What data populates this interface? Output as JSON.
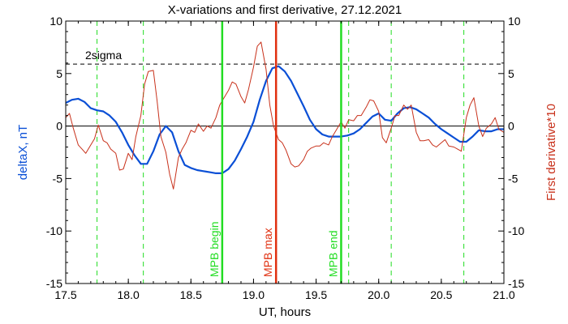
{
  "chart_data": {
    "type": "line",
    "title": "X-variations and first derivative, 27.12.2021",
    "xlabel": "UT, hours",
    "ylabel_left": "deltaX, nT",
    "ylabel_right": "First derivative*10",
    "xlim": [
      17.5,
      21.0
    ],
    "ylim": [
      -15,
      10
    ],
    "x_ticks": [
      "17.5",
      "18.0",
      "18.5",
      "19.0",
      "19.5",
      "20.0",
      "20.5",
      "21.0"
    ],
    "y_ticks_left": [
      "10",
      "5",
      "0",
      "-5",
      "-10",
      "-15"
    ],
    "y_ticks_right": [
      "10",
      "5",
      "0",
      "-5",
      "-10",
      "-15"
    ],
    "grid": false,
    "colors": {
      "deltaX": "#0a4fd6",
      "derivative": "#c8311b",
      "mpb_markers": "#22dd22",
      "mpb_max": "#e03010",
      "sigma": "#000000"
    },
    "threshold": {
      "label": "2sigma",
      "value": 5.9
    },
    "zero_line": 0,
    "dashed_markers_x": [
      17.75,
      18.12,
      19.76,
      20.1,
      20.68
    ],
    "vertical_markers": [
      {
        "label": "MPB begin",
        "x": 18.75,
        "color": "#22dd22"
      },
      {
        "label": "MPB max",
        "x": 19.18,
        "color": "#e03010"
      },
      {
        "label": "MPB end",
        "x": 19.7,
        "color": "#22dd22"
      }
    ],
    "series": [
      {
        "name": "deltaX, nT",
        "color": "#0a4fd6",
        "x": [
          17.5,
          17.55,
          17.6,
          17.65,
          17.7,
          17.75,
          17.8,
          17.85,
          17.9,
          17.95,
          18.0,
          18.05,
          18.1,
          18.15,
          18.2,
          18.25,
          18.3,
          18.35,
          18.4,
          18.45,
          18.5,
          18.55,
          18.6,
          18.65,
          18.7,
          18.75,
          18.8,
          18.85,
          18.9,
          18.95,
          19.0,
          19.05,
          19.1,
          19.15,
          19.2,
          19.25,
          19.3,
          19.35,
          19.4,
          19.45,
          19.5,
          19.55,
          19.6,
          19.65,
          19.7,
          19.75,
          19.8,
          19.85,
          19.9,
          19.95,
          20.0,
          20.05,
          20.1,
          20.15,
          20.2,
          20.25,
          20.3,
          20.35,
          20.4,
          20.45,
          20.5,
          20.55,
          20.6,
          20.65,
          20.7,
          20.75,
          20.8,
          20.85,
          20.9,
          20.95,
          21.0
        ],
        "values": [
          2.2,
          2.5,
          2.6,
          2.3,
          1.7,
          1.5,
          1.4,
          1.0,
          0.4,
          -0.6,
          -1.8,
          -2.8,
          -3.6,
          -3.6,
          -2.4,
          -0.8,
          0.0,
          -0.6,
          -2.4,
          -3.7,
          -4.0,
          -4.2,
          -4.3,
          -4.4,
          -4.5,
          -4.5,
          -4.1,
          -3.3,
          -2.2,
          -1.0,
          0.4,
          2.5,
          4.3,
          5.5,
          5.7,
          5.2,
          4.3,
          3.1,
          1.9,
          0.6,
          -0.3,
          -0.8,
          -1.0,
          -1.0,
          -1.0,
          -0.9,
          -0.7,
          -0.3,
          0.3,
          0.9,
          1.2,
          0.6,
          0.5,
          1.2,
          1.7,
          1.8,
          1.6,
          1.2,
          0.8,
          0.2,
          -0.3,
          -0.7,
          -1.1,
          -1.5,
          -1.5,
          -1.0,
          -0.4,
          -0.5,
          -0.5,
          -0.3,
          -0.3
        ]
      },
      {
        "name": "First derivative*10",
        "color": "#c8311b",
        "x": [
          17.5,
          17.53,
          17.56,
          17.6,
          17.63,
          17.66,
          17.7,
          17.73,
          17.76,
          17.8,
          17.83,
          17.86,
          17.9,
          17.93,
          17.96,
          18.0,
          18.03,
          18.06,
          18.1,
          18.13,
          18.16,
          18.2,
          18.23,
          18.26,
          18.3,
          18.33,
          18.36,
          18.4,
          18.43,
          18.46,
          18.5,
          18.53,
          18.56,
          18.6,
          18.63,
          18.66,
          18.7,
          18.73,
          18.76,
          18.8,
          18.83,
          18.86,
          18.9,
          18.93,
          18.96,
          19.0,
          19.03,
          19.06,
          19.1,
          19.13,
          19.16,
          19.2,
          19.23,
          19.26,
          19.3,
          19.33,
          19.36,
          19.4,
          19.43,
          19.46,
          19.5,
          19.53,
          19.56,
          19.6,
          19.63,
          19.66,
          19.7,
          19.73,
          19.76,
          19.8,
          19.83,
          19.86,
          19.9,
          19.93,
          19.96,
          20.0,
          20.03,
          20.06,
          20.1,
          20.13,
          20.16,
          20.2,
          20.23,
          20.26,
          20.3,
          20.33,
          20.36,
          20.4,
          20.43,
          20.46,
          20.5,
          20.53,
          20.56,
          20.6,
          20.63,
          20.66,
          20.7,
          20.73,
          20.76,
          20.8,
          20.83,
          20.86,
          20.9,
          20.93,
          20.96,
          21.0
        ],
        "values": [
          0.8,
          1.2,
          -0.2,
          -1.8,
          -2.2,
          -2.6,
          -1.8,
          -1.2,
          0.1,
          -1.4,
          -1.6,
          -2.2,
          -2.6,
          -4.2,
          -4.1,
          -2.6,
          -3.2,
          -1.0,
          1.0,
          4.0,
          5.2,
          5.3,
          2.4,
          -1.0,
          -2.5,
          -4.6,
          -6.0,
          -3.0,
          -2.2,
          -1.6,
          -0.4,
          -0.6,
          0.2,
          -0.5,
          0.0,
          -0.2,
          0.8,
          2.0,
          2.6,
          3.4,
          4.2,
          4.0,
          2.8,
          2.2,
          3.5,
          5.6,
          7.6,
          8.0,
          5.4,
          2.0,
          0.0,
          -1.3,
          -1.6,
          -2.3,
          -3.6,
          -3.9,
          -3.8,
          -3.2,
          -2.4,
          -2.1,
          -1.9,
          -1.9,
          -1.6,
          -1.8,
          -1.0,
          -0.4,
          0.4,
          -0.2,
          0.6,
          0.5,
          1.0,
          1.0,
          1.8,
          2.5,
          2.4,
          1.4,
          -1.1,
          -1.6,
          -0.2,
          1.0,
          1.0,
          2.0,
          1.6,
          2.0,
          -0.6,
          -1.4,
          -1.4,
          -1.3,
          -1.8,
          -2.0,
          -1.6,
          -1.3,
          -1.9,
          -2.0,
          -2.2,
          -2.4,
          0.8,
          2.0,
          2.7,
          0.0,
          -1.0,
          -0.2,
          0.2,
          0.8,
          -0.3,
          -0.6
        ]
      }
    ]
  }
}
